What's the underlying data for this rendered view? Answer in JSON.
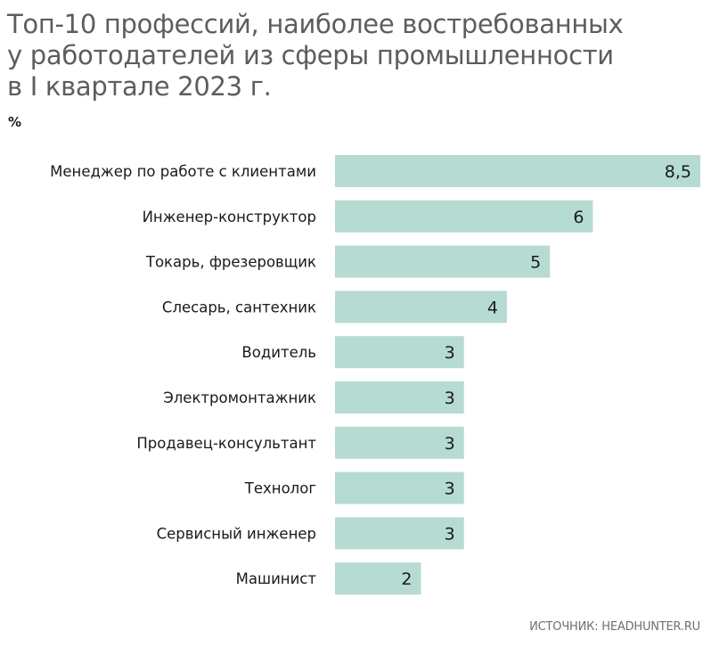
{
  "chart_data": {
    "type": "bar",
    "orientation": "horizontal",
    "title": "Топ-10 профессий, наиболее востребованных у работодателей из сферы промышленности в I квартале 2023 г.",
    "title_lines": [
      "Топ-10 профессий, наиболее востребованных",
      "у работодателей из сферы промышленности",
      "в I квартале 2023 г."
    ],
    "unit": "%",
    "categories": [
      "Менеджер по работе с клиентами",
      "Инженер-конструктор",
      "Токарь, фрезеровщик",
      "Слесарь, сантехник",
      "Водитель",
      "Электромонтажник",
      "Продавец-консультант",
      "Технолог",
      "Сервисный инженер",
      "Машинист"
    ],
    "values": [
      8.5,
      6,
      5,
      4,
      3,
      3,
      3,
      3,
      3,
      2
    ],
    "value_labels": [
      "8,5",
      "6",
      "5",
      "4",
      "3",
      "3",
      "3",
      "3",
      "3",
      "2"
    ],
    "xlim": [
      0,
      8.5
    ],
    "grid": false,
    "legend": "none",
    "source": "ИСТОЧНИК: HEADHUNTER.RU",
    "colors": {
      "bar": "#b5dbd2",
      "text": "#1a1a1a",
      "title": "#5d5d5d"
    }
  }
}
